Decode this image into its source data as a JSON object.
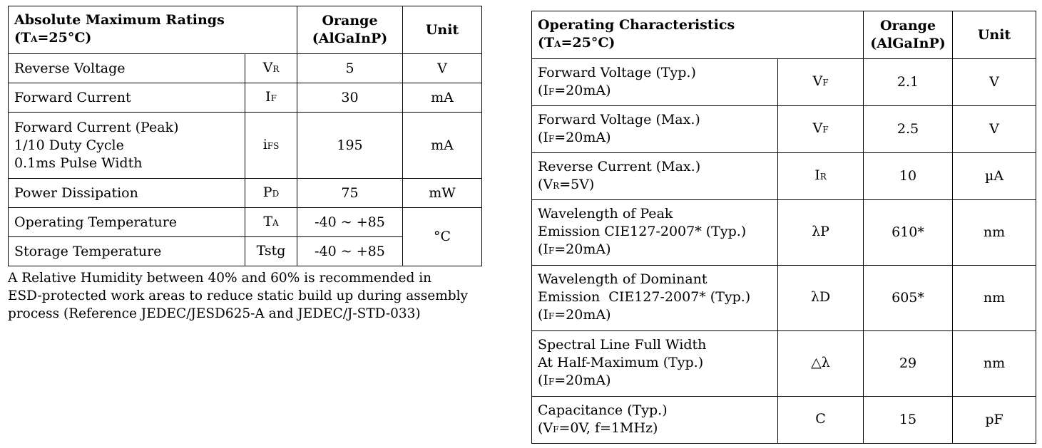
{
  "abs": {
    "title": "Absolute Maximum Ratings",
    "cond": {
      "pre": "(T",
      "sub": "A",
      "post": "=25°C)"
    },
    "col_orange": [
      "Orange",
      "(AlGaInP)"
    ],
    "col_unit": "Unit",
    "rows": [
      {
        "param": [
          "Reverse Voltage"
        ],
        "sym": {
          "main": "V",
          "sub": "R"
        },
        "value": "5",
        "unit": "V"
      },
      {
        "param": [
          "Forward Current"
        ],
        "sym": {
          "main": "I",
          "sub": "F"
        },
        "value": "30",
        "unit": "mA"
      },
      {
        "param": [
          "Forward Current (Peak)",
          "1/10 Duty Cycle",
          "0.1ms Pulse Width"
        ],
        "sym": {
          "main": "i",
          "sub": "FS"
        },
        "value": "195",
        "unit": "mA"
      },
      {
        "param": [
          "Power Dissipation"
        ],
        "sym": {
          "main": "P",
          "sub": "D"
        },
        "value": "75",
        "unit": "mW"
      },
      {
        "param": [
          "Operating Temperature"
        ],
        "sym": {
          "main": "T",
          "sub": "A"
        },
        "value": "-40 ~ +85",
        "unit": "°C"
      },
      {
        "param": [
          "Storage Temperature"
        ],
        "sym": {
          "main": "Tstg",
          "sub": ""
        },
        "value": "-40 ~ +85"
      }
    ],
    "note": [
      "A Relative Humidity between 40% and 60% is recommended in",
      "ESD-protected work areas to reduce static build up during assembly",
      "process (Reference JEDEC/JESD625-A and JEDEC/J-STD-033)"
    ]
  },
  "op": {
    "title": "Operating Characteristics",
    "cond": {
      "pre": "(T",
      "sub": "A",
      "post": "=25°C)"
    },
    "col_orange": [
      "Orange",
      "(AlGaInP)"
    ],
    "col_unit": "Unit",
    "rows": [
      {
        "param": [
          "Forward Voltage (Typ.)"
        ],
        "cond": {
          "pre": "(I",
          "sub": "F",
          "post": "=20mA)"
        },
        "sym": {
          "main": "V",
          "sub": "F"
        },
        "value": "2.1",
        "unit": "V"
      },
      {
        "param": [
          "Forward Voltage (Max.)"
        ],
        "cond": {
          "pre": "(I",
          "sub": "F",
          "post": "=20mA)"
        },
        "sym": {
          "main": "V",
          "sub": "F"
        },
        "value": "2.5",
        "unit": "V"
      },
      {
        "param": [
          "Reverse Current (Max.)"
        ],
        "cond": {
          "pre": "(V",
          "sub": "R",
          "post": "=5V)"
        },
        "sym": {
          "main": "I",
          "sub": "R"
        },
        "value": "10",
        "unit": "µA"
      },
      {
        "param": [
          "Wavelength of Peak",
          "Emission CIE127-2007* (Typ.)"
        ],
        "cond": {
          "pre": "(I",
          "sub": "F",
          "post": "=20mA)"
        },
        "sym": {
          "main": "λP",
          "sub": ""
        },
        "value": "610*",
        "unit": "nm"
      },
      {
        "param": [
          "Wavelength of Dominant",
          "Emission  CIE127-2007* (Typ.)"
        ],
        "cond": {
          "pre": "(I",
          "sub": "F",
          "post": "=20mA)"
        },
        "sym": {
          "main": "λD",
          "sub": ""
        },
        "value": "605*",
        "unit": "nm"
      },
      {
        "param": [
          "Spectral Line Full Width",
          "At Half-Maximum (Typ.)"
        ],
        "cond": {
          "pre": "(I",
          "sub": "F",
          "post": "=20mA)"
        },
        "sym": {
          "main": "△λ",
          "sub": ""
        },
        "value": "29",
        "unit": "nm"
      },
      {
        "param": [
          "Capacitance (Typ.)"
        ],
        "cond": {
          "pre": "(V",
          "sub": "F",
          "post": "=0V, f=1MHz)"
        },
        "sym": {
          "main": "C",
          "sub": ""
        },
        "value": "15",
        "unit": "pF"
      }
    ]
  }
}
